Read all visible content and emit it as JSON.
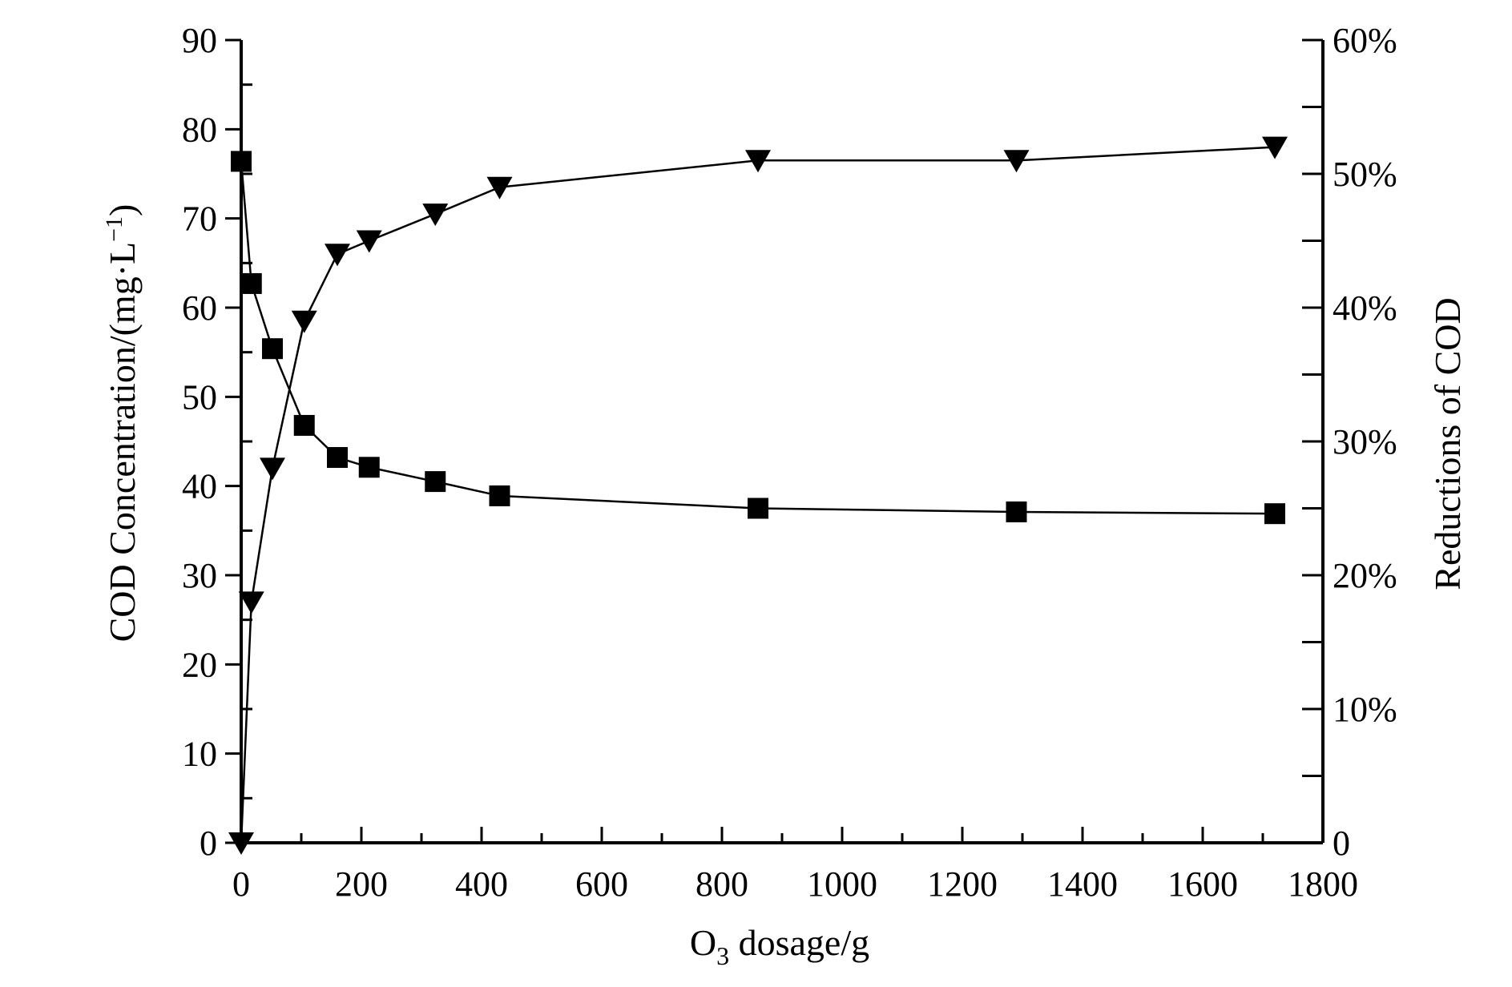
{
  "chart_data": {
    "type": "line",
    "xlabel": "O₃ dosage/g",
    "xlabel_main": "O",
    "xlabel_sub": "3",
    "xlabel_rest": " dosage/g",
    "ylabel": "COD Concentration/(mg·L⁻¹)",
    "ylabel_main": "COD Concentration/(mg·L",
    "ylabel_sup": "−1",
    "ylabel_close": ")",
    "y2label": "Reductions of COD",
    "xlim": [
      0,
      1800
    ],
    "ylim": [
      0,
      90
    ],
    "y2lim": [
      0,
      60
    ],
    "x_ticks": [
      0,
      200,
      400,
      600,
      800,
      1000,
      1200,
      1400,
      1600,
      1800
    ],
    "x_tick_labels": [
      "0",
      "200",
      "400",
      "600",
      "800",
      "1000",
      "1200",
      "1400",
      "1600",
      "1800"
    ],
    "y_ticks": [
      0,
      10,
      20,
      30,
      40,
      50,
      60,
      70,
      80,
      90
    ],
    "y_tick_labels": [
      "0",
      "10",
      "20",
      "30",
      "40",
      "50",
      "60",
      "70",
      "80",
      "90"
    ],
    "y2_ticks": [
      0,
      10,
      20,
      30,
      40,
      50,
      60
    ],
    "y2_tick_labels": [
      "0",
      "10%",
      "20%",
      "30%",
      "40%",
      "50%",
      "60%"
    ],
    "grid": false,
    "legend": "none",
    "series": [
      {
        "axis": "left",
        "marker": "square",
        "color": "#000000",
        "x": [
          0,
          17,
          52,
          105,
          160,
          213,
          323,
          430,
          860,
          1290,
          1720
        ],
        "y": [
          76.4,
          62.7,
          55.4,
          46.8,
          43.2,
          42.1,
          40.5,
          38.9,
          37.5,
          37.1,
          36.9
        ]
      },
      {
        "axis": "right",
        "marker": "triangle-down",
        "color": "#000000",
        "x": [
          0,
          17,
          52,
          105,
          160,
          213,
          323,
          430,
          860,
          1290,
          1720
        ],
        "y": [
          0,
          18,
          28,
          39,
          44,
          45,
          47,
          49,
          51,
          51,
          52
        ]
      }
    ]
  }
}
